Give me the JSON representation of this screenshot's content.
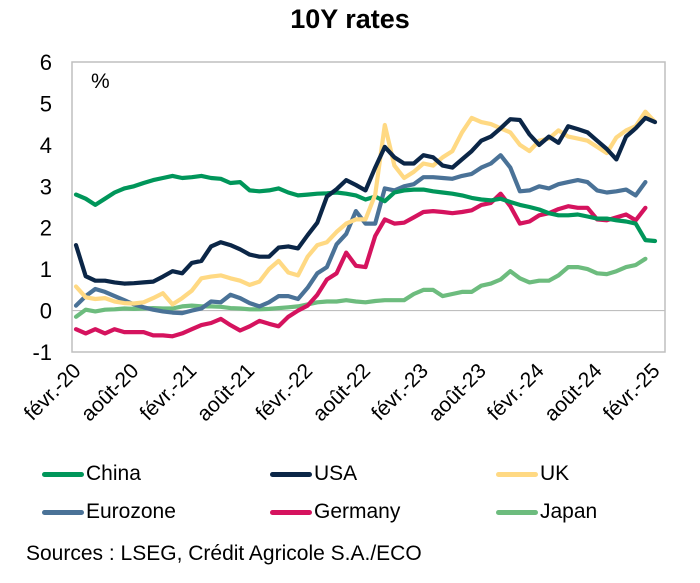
{
  "chart_data": {
    "type": "line",
    "title": "10Y rates",
    "ylabel": "%",
    "xlabel": "",
    "ylim": [
      -1,
      6
    ],
    "yticks": [
      6,
      5,
      4,
      3,
      2,
      1,
      0,
      -1
    ],
    "grid": false,
    "legend_position": "bottom",
    "x_start": "Feb 2020",
    "x_frequency": "monthly",
    "xtick_labels": [
      "févr.-20",
      "août-20",
      "févr.-21",
      "août-21",
      "févr.-22",
      "août-22",
      "févr.-23",
      "août-23",
      "févr.-24",
      "août-24",
      "févr.-25"
    ],
    "xtick_indices": [
      0,
      6,
      12,
      18,
      24,
      30,
      36,
      42,
      48,
      54,
      60
    ],
    "series": [
      {
        "name": "China",
        "color": "#00965A",
        "values": [
          2.8,
          2.7,
          2.55,
          2.7,
          2.85,
          2.95,
          3.0,
          3.08,
          3.15,
          3.2,
          3.25,
          3.2,
          3.22,
          3.25,
          3.2,
          3.18,
          3.08,
          3.1,
          2.9,
          2.88,
          2.9,
          2.95,
          2.85,
          2.78,
          2.8,
          2.82,
          2.83,
          2.85,
          2.82,
          2.78,
          2.68,
          2.75,
          2.64,
          2.85,
          2.9,
          2.92,
          2.92,
          2.88,
          2.85,
          2.82,
          2.78,
          2.72,
          2.68,
          2.66,
          2.7,
          2.62,
          2.55,
          2.5,
          2.44,
          2.35,
          2.3,
          2.3,
          2.32,
          2.27,
          2.22,
          2.22,
          2.18,
          2.15,
          2.1,
          1.7,
          1.68
        ]
      },
      {
        "name": "USA",
        "color": "#0B2647",
        "values": [
          1.58,
          0.83,
          0.72,
          0.72,
          0.68,
          0.65,
          0.66,
          0.68,
          0.7,
          0.82,
          0.95,
          0.9,
          1.15,
          1.2,
          1.55,
          1.65,
          1.58,
          1.48,
          1.35,
          1.3,
          1.3,
          1.52,
          1.55,
          1.5,
          1.82,
          2.12,
          2.75,
          2.93,
          3.15,
          3.03,
          2.9,
          3.45,
          3.95,
          3.7,
          3.55,
          3.55,
          3.75,
          3.7,
          3.5,
          3.45,
          3.65,
          3.85,
          4.1,
          4.2,
          4.4,
          4.62,
          4.6,
          4.25,
          4.0,
          4.2,
          4.05,
          4.45,
          4.38,
          4.3,
          4.1,
          3.9,
          3.65,
          4.2,
          4.4,
          4.65,
          4.55
        ]
      },
      {
        "name": "UK",
        "color": "#FFD983",
        "values": [
          0.58,
          0.32,
          0.28,
          0.3,
          0.22,
          0.18,
          0.17,
          0.2,
          0.3,
          0.42,
          0.15,
          0.3,
          0.48,
          0.78,
          0.82,
          0.85,
          0.78,
          0.72,
          0.62,
          0.7,
          1.0,
          1.2,
          0.92,
          0.85,
          1.3,
          1.58,
          1.65,
          1.9,
          2.1,
          2.2,
          2.2,
          2.8,
          4.48,
          3.5,
          3.2,
          3.35,
          3.55,
          3.5,
          3.7,
          3.85,
          4.3,
          4.65,
          4.55,
          4.5,
          4.4,
          4.3,
          4.0,
          3.85,
          4.1,
          4.15,
          4.35,
          4.2,
          4.15,
          4.1,
          3.95,
          3.8,
          4.18,
          4.35,
          4.45,
          4.8,
          4.55
        ]
      },
      {
        "name": "Eurozone",
        "color": "#4A7297",
        "values": [
          0.12,
          0.35,
          0.52,
          0.45,
          0.35,
          0.25,
          0.15,
          0.08,
          0.02,
          -0.02,
          -0.05,
          -0.06,
          0.0,
          0.05,
          0.22,
          0.2,
          0.38,
          0.3,
          0.18,
          0.1,
          0.2,
          0.35,
          0.35,
          0.28,
          0.55,
          0.9,
          1.05,
          1.6,
          1.85,
          2.4,
          2.1,
          2.1,
          2.95,
          2.9,
          3.0,
          3.05,
          3.22,
          3.22,
          3.2,
          3.18,
          3.25,
          3.3,
          3.45,
          3.55,
          3.75,
          3.45,
          2.88,
          2.9,
          3.0,
          2.95,
          3.05,
          3.1,
          3.15,
          3.1,
          2.9,
          2.85,
          2.88,
          2.92,
          2.78,
          3.1
        ]
      },
      {
        "name": "Germany",
        "color": "#D5135E",
        "values": [
          -0.45,
          -0.55,
          -0.45,
          -0.55,
          -0.45,
          -0.52,
          -0.52,
          -0.52,
          -0.6,
          -0.6,
          -0.62,
          -0.55,
          -0.45,
          -0.35,
          -0.3,
          -0.2,
          -0.35,
          -0.48,
          -0.38,
          -0.25,
          -0.32,
          -0.38,
          -0.15,
          0.0,
          0.12,
          0.38,
          0.75,
          0.9,
          1.4,
          1.08,
          1.05,
          1.8,
          2.2,
          2.1,
          2.12,
          2.25,
          2.38,
          2.4,
          2.38,
          2.35,
          2.38,
          2.42,
          2.55,
          2.6,
          2.82,
          2.52,
          2.1,
          2.15,
          2.3,
          2.35,
          2.45,
          2.52,
          2.48,
          2.48,
          2.2,
          2.18,
          2.25,
          2.32,
          2.18,
          2.48
        ]
      },
      {
        "name": "Japan",
        "color": "#6DBC7E",
        "values": [
          -0.15,
          0.02,
          -0.02,
          0.02,
          0.03,
          0.05,
          0.04,
          0.05,
          0.06,
          0.05,
          0.05,
          0.1,
          0.12,
          0.1,
          0.1,
          0.09,
          0.06,
          0.05,
          0.03,
          0.03,
          0.04,
          0.06,
          0.08,
          0.1,
          0.15,
          0.2,
          0.22,
          0.22,
          0.25,
          0.22,
          0.2,
          0.23,
          0.25,
          0.25,
          0.25,
          0.4,
          0.5,
          0.5,
          0.35,
          0.4,
          0.45,
          0.45,
          0.6,
          0.65,
          0.75,
          0.95,
          0.78,
          0.68,
          0.72,
          0.72,
          0.85,
          1.05,
          1.05,
          1.0,
          0.9,
          0.88,
          0.95,
          1.05,
          1.1,
          1.25
        ]
      }
    ]
  },
  "footer": {
    "sources": "Sources : LSEG, Crédit Agricole S.A./ECO"
  }
}
